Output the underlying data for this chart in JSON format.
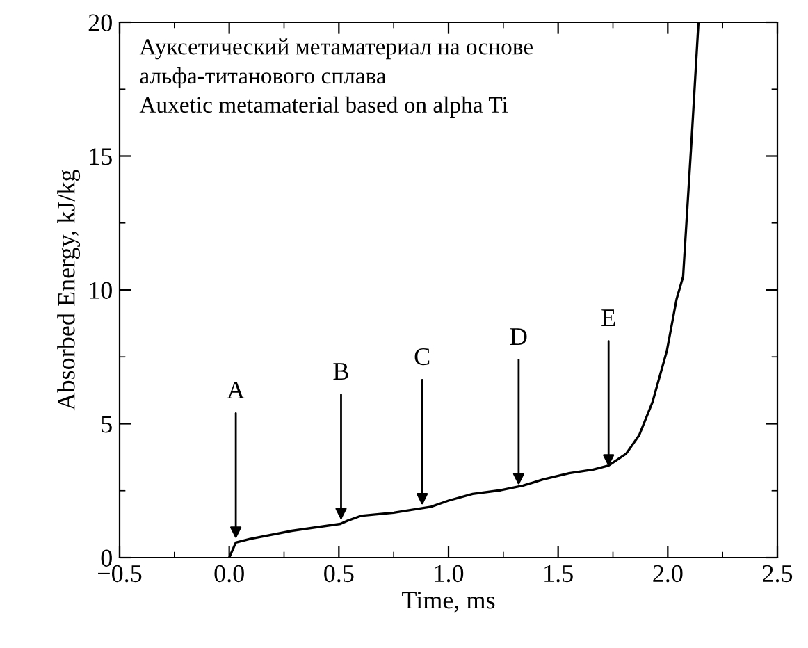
{
  "chart_data": {
    "type": "line",
    "xlabel": "Time, ms",
    "ylabel": "Absorbed Energy, kJ/kg",
    "annotations": [
      "Ауксетический метаматериал на основе\nальфа-титанового сплава\nAuxetic metamaterial based on alpha Ti",
      {
        "text": "A",
        "x": 0.03,
        "y": 0.7
      },
      {
        "text": "B",
        "x": 0.51,
        "y": 1.4
      },
      {
        "text": "C",
        "x": 0.88,
        "y": 1.95
      },
      {
        "text": "D",
        "x": 1.32,
        "y": 2.7
      },
      {
        "text": "E",
        "x": 1.73,
        "y": 3.4
      }
    ],
    "series": [
      {
        "color": "#000000",
        "x": [
          0,
          0.03,
          0.095,
          0.285,
          0.507,
          0.54,
          0.6,
          0.75,
          0.92,
          1.0,
          1.11,
          1.24,
          1.34,
          1.43,
          1.55,
          1.66,
          1.73,
          1.81,
          1.87,
          1.93,
          1.996,
          2.04,
          2.07,
          2.11,
          2.14
        ],
        "values": [
          0,
          0.56,
          0.7,
          1.0,
          1.26,
          1.38,
          1.56,
          1.68,
          1.9,
          2.13,
          2.38,
          2.52,
          2.69,
          2.92,
          3.15,
          3.29,
          3.44,
          3.88,
          4.58,
          5.8,
          7.73,
          9.65,
          10.5,
          15.8,
          20
        ]
      }
    ],
    "xlim": [
      -0.5,
      2.5
    ],
    "ylim": [
      0,
      20
    ],
    "xticks": [
      {
        "value": -0.5,
        "label": "−0.5"
      },
      {
        "value": 0,
        "label": "0.0"
      },
      {
        "value": 0.5,
        "label": "0.5"
      },
      {
        "value": 1,
        "label": "1.0"
      },
      {
        "value": 1.5,
        "label": "1.5"
      },
      {
        "value": 2,
        "label": "2.0"
      },
      {
        "value": 2.5,
        "label": "2.5"
      }
    ],
    "yticks": [
      0,
      5,
      10,
      15,
      20
    ],
    "grid": false,
    "legend": false,
    "marker": "none",
    "line_style": "solid"
  }
}
